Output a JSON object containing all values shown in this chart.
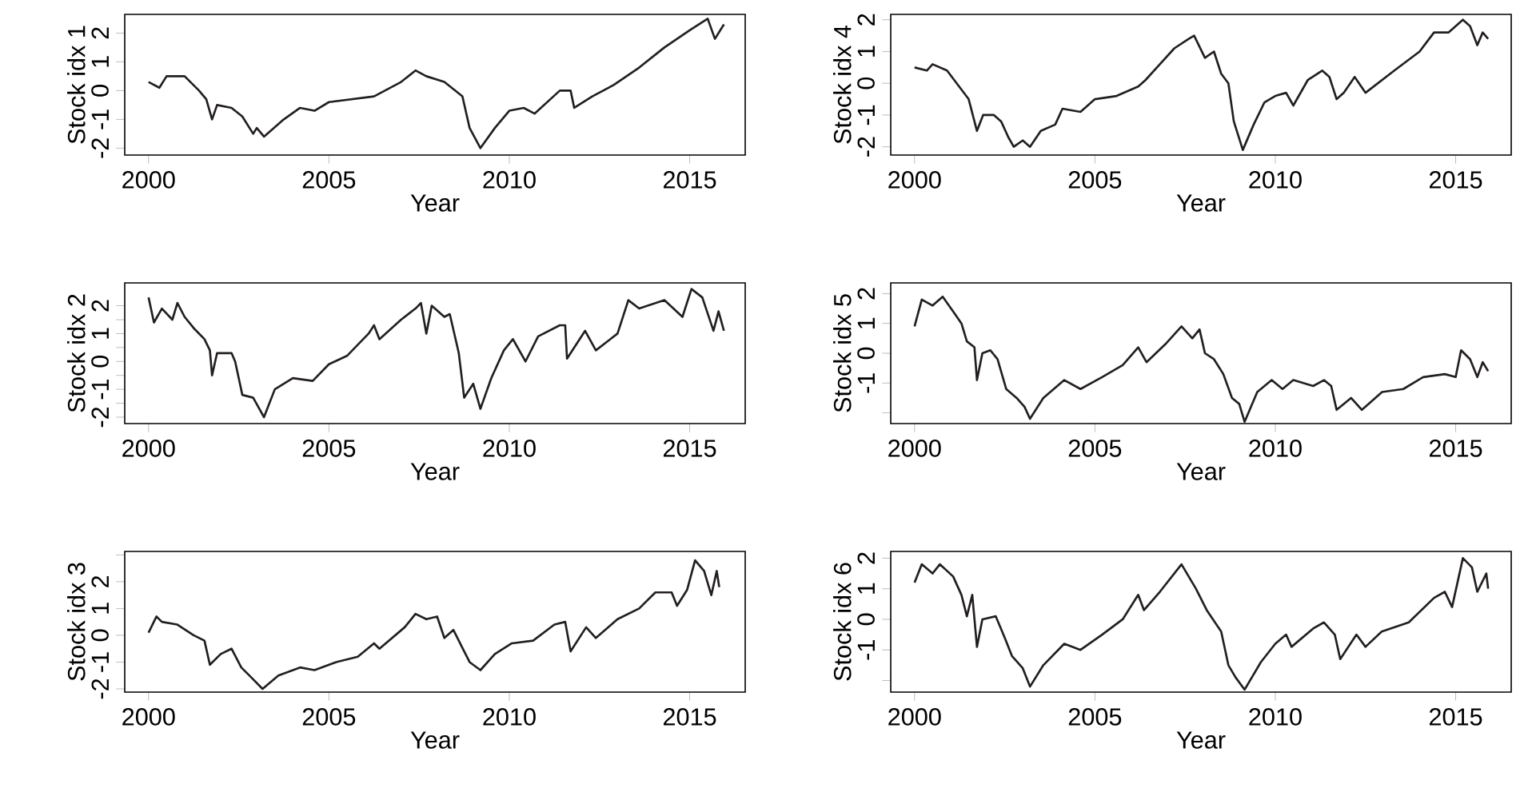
{
  "chart_data": [
    {
      "type": "line",
      "xlabel": "Year",
      "ylabel": "Stock idx 1",
      "color": "#231f20",
      "xlim": [
        1999.34,
        2016.54
      ],
      "xticks": [
        2000,
        2005,
        2010,
        2015
      ],
      "ylim": [
        -2.24,
        2.65
      ],
      "yticks": [
        -2,
        -1,
        0,
        1,
        2
      ],
      "x": [
        2000.0,
        2000.3,
        2000.5,
        2001.0,
        2001.4,
        2001.6,
        2001.76,
        2001.9,
        2002.3,
        2002.6,
        2002.9,
        2003.0,
        2003.2,
        2003.75,
        2004.2,
        2004.6,
        2005.0,
        2006.25,
        2007.0,
        2007.4,
        2007.7,
        2008.2,
        2008.7,
        2008.9,
        2009.2,
        2009.6,
        2010.0,
        2010.4,
        2010.7,
        2011.4,
        2011.7,
        2011.8,
        2012.3,
        2012.9,
        2013.6,
        2014.3,
        2015.0,
        2015.5,
        2015.7,
        2015.95
      ],
      "values": [
        0.3,
        0.1,
        0.5,
        0.5,
        0.0,
        -0.3,
        -1.0,
        -0.5,
        -0.6,
        -0.9,
        -1.5,
        -1.3,
        -1.6,
        -1.0,
        -0.6,
        -0.7,
        -0.4,
        -0.2,
        0.3,
        0.7,
        0.5,
        0.3,
        -0.2,
        -1.3,
        -2.0,
        -1.3,
        -0.7,
        -0.6,
        -0.8,
        0.0,
        0.0,
        -0.6,
        -0.2,
        0.2,
        0.8,
        1.5,
        2.1,
        2.5,
        1.8,
        2.3
      ]
    },
    {
      "type": "line",
      "xlabel": "Year",
      "ylabel": "Stock idx 4",
      "color": "#231f20",
      "xlim": [
        1999.34,
        2016.54
      ],
      "xticks": [
        2000,
        2005,
        2010,
        2015
      ],
      "ylim": [
        -2.26,
        2.17
      ],
      "yticks": [
        -2,
        -1,
        0,
        1,
        2
      ],
      "x": [
        2000.0,
        2000.34,
        2000.5,
        2000.9,
        2001.3,
        2001.5,
        2001.73,
        2001.9,
        2002.2,
        2002.4,
        2002.6,
        2002.75,
        2003.0,
        2003.2,
        2003.5,
        2003.9,
        2004.1,
        2004.6,
        2005.0,
        2005.6,
        2006.2,
        2006.4,
        2006.8,
        2007.2,
        2007.6,
        2007.75,
        2008.05,
        2008.3,
        2008.5,
        2008.7,
        2008.85,
        2009.1,
        2009.4,
        2009.7,
        2010.0,
        2010.3,
        2010.5,
        2010.9,
        2011.3,
        2011.5,
        2011.7,
        2011.9,
        2012.2,
        2012.5,
        2013.3,
        2014.0,
        2014.4,
        2014.8,
        2015.0,
        2015.2,
        2015.4,
        2015.6,
        2015.75,
        2015.9
      ],
      "values": [
        0.5,
        0.4,
        0.6,
        0.4,
        -0.2,
        -0.5,
        -1.5,
        -1.0,
        -1.0,
        -1.2,
        -1.7,
        -2.0,
        -1.8,
        -2.0,
        -1.5,
        -1.3,
        -0.8,
        -0.9,
        -0.5,
        -0.4,
        -0.1,
        0.1,
        0.6,
        1.1,
        1.4,
        1.5,
        0.8,
        1.0,
        0.3,
        0.0,
        -1.2,
        -2.1,
        -1.3,
        -0.6,
        -0.4,
        -0.3,
        -0.7,
        0.1,
        0.4,
        0.2,
        -0.5,
        -0.3,
        0.2,
        -0.3,
        0.4,
        1.0,
        1.6,
        1.6,
        1.8,
        2.0,
        1.8,
        1.2,
        1.6,
        1.4
      ]
    },
    {
      "type": "line",
      "xlabel": "Year",
      "ylabel": "Stock idx 2",
      "color": "#231f20",
      "xlim": [
        1999.34,
        2016.54
      ],
      "xticks": [
        2000,
        2005,
        2010,
        2015
      ],
      "ylim": [
        -2.23,
        2.82
      ],
      "yticks": [
        -2,
        {
          "value": -1.5,
          "label": null
        },
        -1,
        {
          "value": -0.5,
          "label": null
        },
        0,
        {
          "value": 0.5,
          "label": null
        },
        1,
        {
          "value": 1.5,
          "label": null
        },
        2
      ],
      "x": [
        2000.0,
        2000.15,
        2000.37,
        2000.66,
        2000.8,
        2001.0,
        2001.25,
        2001.55,
        2001.7,
        2001.76,
        2001.9,
        2002.3,
        2002.4,
        2002.6,
        2002.9,
        2003.2,
        2003.5,
        2004.0,
        2004.55,
        2005.0,
        2005.5,
        2006.1,
        2006.25,
        2006.4,
        2007.0,
        2007.4,
        2007.55,
        2007.7,
        2007.85,
        2008.2,
        2008.35,
        2008.6,
        2008.75,
        2009.0,
        2009.2,
        2009.5,
        2009.85,
        2010.1,
        2010.45,
        2010.8,
        2011.4,
        2011.55,
        2011.6,
        2012.1,
        2012.4,
        2013.0,
        2013.3,
        2013.6,
        2014.3,
        2014.8,
        2015.05,
        2015.35,
        2015.66,
        2015.8,
        2015.95
      ],
      "values": [
        2.3,
        1.4,
        1.9,
        1.5,
        2.1,
        1.6,
        1.2,
        0.8,
        0.4,
        -0.5,
        0.3,
        0.3,
        0.0,
        -1.2,
        -1.3,
        -2.0,
        -1.0,
        -0.6,
        -0.7,
        -0.1,
        0.2,
        1.0,
        1.3,
        0.8,
        1.5,
        1.9,
        2.1,
        1.0,
        2.0,
        1.6,
        1.7,
        0.3,
        -1.3,
        -0.8,
        -1.7,
        -0.6,
        0.4,
        0.8,
        0.0,
        0.9,
        1.3,
        1.3,
        0.1,
        1.1,
        0.4,
        1.0,
        2.2,
        1.9,
        2.2,
        1.6,
        2.6,
        2.3,
        1.1,
        1.8,
        1.1
      ]
    },
    {
      "type": "line",
      "xlabel": "Year",
      "ylabel": "Stock idx 5",
      "color": "#231f20",
      "xlim": [
        1999.34,
        2016.54
      ],
      "xticks": [
        2000,
        2005,
        2010,
        2015
      ],
      "ylim": [
        -2.36,
        2.36
      ],
      "yticks": [
        {
          "value": -2,
          "label": null
        },
        -1,
        0,
        1,
        2
      ],
      "x": [
        2000.0,
        2000.2,
        2000.5,
        2000.78,
        2001.07,
        2001.3,
        2001.45,
        2001.66,
        2001.73,
        2001.88,
        2002.1,
        2002.3,
        2002.54,
        2002.83,
        2003.05,
        2003.2,
        2003.57,
        2004.15,
        2004.6,
        2005.2,
        2005.77,
        2006.2,
        2006.43,
        2006.95,
        2007.4,
        2007.7,
        2007.9,
        2008.05,
        2008.3,
        2008.56,
        2008.8,
        2009.0,
        2009.15,
        2009.5,
        2009.9,
        2010.2,
        2010.5,
        2011.05,
        2011.35,
        2011.55,
        2011.7,
        2012.1,
        2012.4,
        2012.96,
        2013.55,
        2014.1,
        2014.7,
        2015.0,
        2015.15,
        2015.4,
        2015.6,
        2015.75,
        2015.9
      ],
      "values": [
        0.9,
        1.8,
        1.6,
        1.9,
        1.4,
        1.0,
        0.4,
        0.2,
        -0.9,
        0.0,
        0.1,
        -0.2,
        -1.2,
        -1.5,
        -1.8,
        -2.2,
        -1.5,
        -0.9,
        -1.2,
        -0.8,
        -0.4,
        0.2,
        -0.3,
        0.3,
        0.9,
        0.5,
        0.8,
        0.0,
        -0.2,
        -0.7,
        -1.5,
        -1.7,
        -2.3,
        -1.3,
        -0.9,
        -1.2,
        -0.9,
        -1.1,
        -0.9,
        -1.1,
        -1.9,
        -1.5,
        -1.9,
        -1.3,
        -1.2,
        -0.8,
        -0.7,
        -0.8,
        0.1,
        -0.2,
        -0.8,
        -0.3,
        -0.6
      ]
    },
    {
      "type": "line",
      "xlabel": "Year",
      "ylabel": "Stock idx 3",
      "color": "#231f20",
      "xlim": [
        1999.34,
        2016.54
      ],
      "xticks": [
        2000,
        2005,
        2010,
        2015
      ],
      "ylim": [
        -2.12,
        3.13
      ],
      "yticks": [
        -2,
        -1,
        0,
        1,
        2,
        {
          "value": 3,
          "label": null
        }
      ],
      "x": [
        2000.0,
        2000.22,
        2000.37,
        2000.8,
        2001.25,
        2001.55,
        2001.7,
        2002.0,
        2002.3,
        2002.57,
        2002.87,
        2003.16,
        2003.6,
        2004.2,
        2004.6,
        2005.2,
        2005.8,
        2006.25,
        2006.4,
        2007.1,
        2007.4,
        2007.7,
        2008.0,
        2008.2,
        2008.45,
        2008.75,
        2008.9,
        2009.2,
        2009.6,
        2010.07,
        2010.66,
        2011.25,
        2011.55,
        2011.7,
        2012.13,
        2012.4,
        2013.0,
        2013.6,
        2014.05,
        2014.5,
        2014.65,
        2014.93,
        2015.15,
        2015.4,
        2015.6,
        2015.75,
        2015.82
      ],
      "values": [
        0.1,
        0.7,
        0.5,
        0.4,
        0.0,
        -0.2,
        -1.1,
        -0.7,
        -0.5,
        -1.2,
        -1.6,
        -2.0,
        -1.5,
        -1.2,
        -1.3,
        -1.0,
        -0.8,
        -0.3,
        -0.5,
        0.3,
        0.8,
        0.6,
        0.7,
        -0.1,
        0.2,
        -0.6,
        -1.0,
        -1.3,
        -0.7,
        -0.3,
        -0.2,
        0.4,
        0.5,
        -0.6,
        0.3,
        -0.1,
        0.6,
        1.0,
        1.6,
        1.6,
        1.1,
        1.7,
        2.8,
        2.4,
        1.5,
        2.4,
        1.8
      ]
    },
    {
      "type": "line",
      "xlabel": "Year",
      "ylabel": "Stock idx 6",
      "color": "#231f20",
      "xlim": [
        1999.34,
        2016.54
      ],
      "xticks": [
        2000,
        2005,
        2010,
        2015
      ],
      "ylim": [
        -2.38,
        2.22
      ],
      "yticks": [
        {
          "value": -2,
          "label": null
        },
        -1,
        0,
        1,
        2
      ],
      "x": [
        2000.0,
        2000.2,
        2000.5,
        2000.7,
        2001.07,
        2001.3,
        2001.45,
        2001.6,
        2001.73,
        2001.88,
        2002.25,
        2002.5,
        2002.7,
        2003.0,
        2003.2,
        2003.57,
        2004.15,
        2004.6,
        2005.2,
        2005.77,
        2006.2,
        2006.36,
        2006.8,
        2007.4,
        2007.6,
        2007.8,
        2008.1,
        2008.5,
        2008.7,
        2008.9,
        2009.15,
        2009.6,
        2010.0,
        2010.3,
        2010.45,
        2011.05,
        2011.35,
        2011.65,
        2011.8,
        2012.25,
        2012.5,
        2012.95,
        2013.7,
        2014.4,
        2014.7,
        2014.9,
        2015.2,
        2015.45,
        2015.6,
        2015.85,
        2015.9
      ],
      "values": [
        1.2,
        1.8,
        1.5,
        1.8,
        1.4,
        0.8,
        0.1,
        0.8,
        -0.9,
        0.0,
        0.1,
        -0.6,
        -1.2,
        -1.6,
        -2.2,
        -1.5,
        -0.8,
        -1.0,
        -0.5,
        0.0,
        0.8,
        0.3,
        0.9,
        1.8,
        1.4,
        1.0,
        0.3,
        -0.4,
        -1.5,
        -1.9,
        -2.3,
        -1.4,
        -0.8,
        -0.5,
        -0.9,
        -0.3,
        -0.1,
        -0.5,
        -1.3,
        -0.5,
        -0.9,
        -0.4,
        -0.1,
        0.7,
        0.9,
        0.4,
        2.0,
        1.7,
        0.9,
        1.5,
        1.0
      ]
    }
  ]
}
